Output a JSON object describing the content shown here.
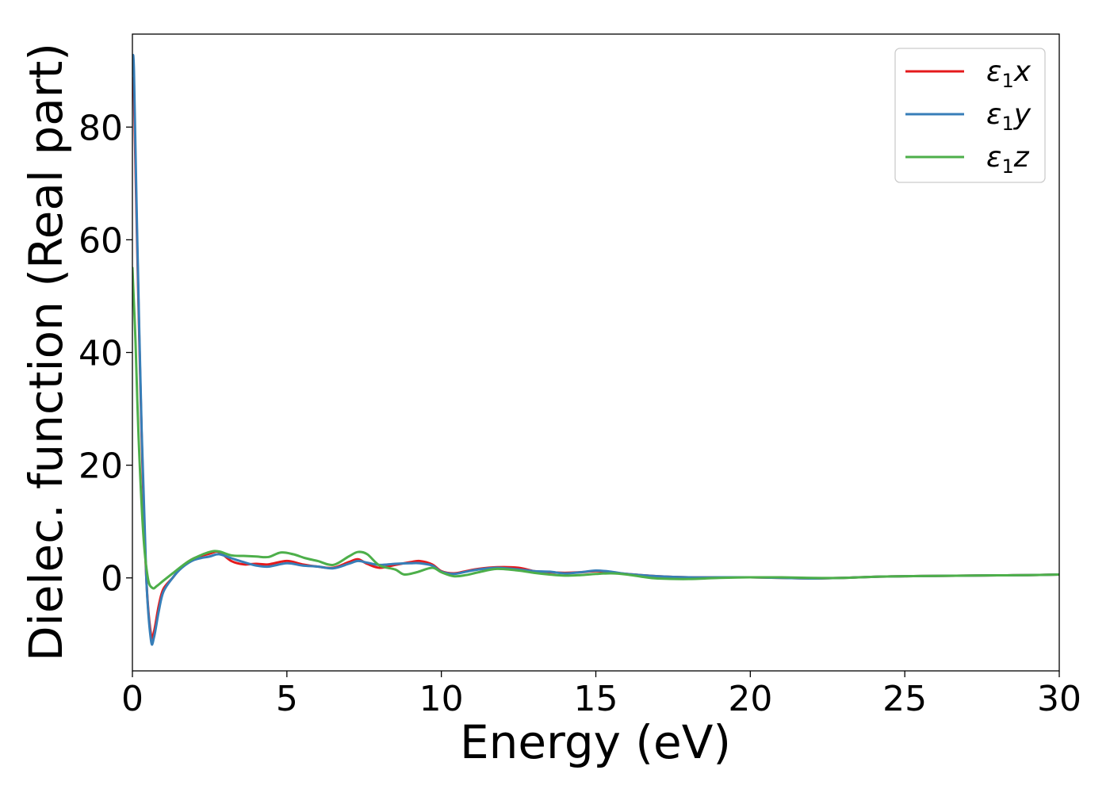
{
  "chart_data": {
    "type": "line",
    "title": "",
    "xlabel": "Energy (eV)",
    "ylabel": "Dielec. function (Real part)",
    "xlim": [
      0,
      30
    ],
    "ylim": [
      -16.5,
      96.5
    ],
    "xticks": [
      0,
      5,
      10,
      15,
      20,
      25,
      30
    ],
    "xtick_labels": [
      "0",
      "5",
      "10",
      "15",
      "20",
      "25",
      "30"
    ],
    "yticks": [
      0,
      20,
      40,
      60,
      80
    ],
    "ytick_labels": [
      "0",
      "20",
      "40",
      "60",
      "80"
    ],
    "grid": false,
    "legend_position": "top-right",
    "series": [
      {
        "name": "ε1x",
        "name_base": "ε",
        "name_sub": "1",
        "name_tail": "x",
        "color": "#e41a1c",
        "x": [
          0,
          0.05,
          0.15,
          0.3,
          0.45,
          0.6,
          0.7,
          0.85,
          1.0,
          1.3,
          1.6,
          2.0,
          2.5,
          2.8,
          3.2,
          3.6,
          4.0,
          4.4,
          5.0,
          5.5,
          6.0,
          6.5,
          7.0,
          7.3,
          7.6,
          8.0,
          8.5,
          9.0,
          9.3,
          9.7,
          10.0,
          10.4,
          10.8,
          11.2,
          11.8,
          12.5,
          13.0,
          13.5,
          14.0,
          14.5,
          15.0,
          15.5,
          16.0,
          17.0,
          18.0,
          19.0,
          20.0,
          21.0,
          22.0,
          23.0,
          24.0,
          25.0,
          26.0,
          27.0,
          28.0,
          29.0,
          30.0
        ],
        "y": [
          88.0,
          86.0,
          60.0,
          25.0,
          0.0,
          -10.0,
          -9.5,
          -5.0,
          -2.0,
          0.0,
          2.0,
          3.5,
          4.3,
          4.6,
          3.0,
          2.4,
          2.5,
          2.4,
          3.0,
          2.4,
          2.0,
          1.8,
          2.8,
          3.3,
          2.5,
          1.8,
          2.3,
          2.8,
          3.0,
          2.4,
          1.2,
          0.8,
          1.2,
          1.6,
          1.9,
          1.8,
          1.2,
          1.0,
          0.9,
          1.0,
          1.2,
          1.0,
          0.7,
          0.3,
          0.1,
          0.1,
          0.1,
          0.0,
          -0.1,
          0.0,
          0.2,
          0.3,
          0.35,
          0.4,
          0.45,
          0.5,
          0.6
        ]
      },
      {
        "name": "ε1y",
        "name_base": "ε",
        "name_sub": "1",
        "name_tail": "y",
        "color": "#377eb8",
        "x": [
          0,
          0.05,
          0.15,
          0.3,
          0.45,
          0.6,
          0.7,
          0.85,
          1.0,
          1.3,
          1.6,
          2.0,
          2.5,
          2.8,
          3.2,
          3.6,
          4.0,
          4.4,
          5.0,
          5.5,
          6.0,
          6.5,
          7.0,
          7.3,
          7.6,
          8.0,
          8.5,
          9.0,
          9.3,
          9.7,
          10.0,
          10.4,
          10.8,
          11.2,
          11.8,
          12.5,
          13.0,
          13.5,
          14.0,
          14.5,
          15.0,
          15.5,
          16.0,
          17.0,
          18.0,
          19.0,
          20.0,
          21.0,
          22.0,
          23.0,
          24.0,
          25.0,
          26.0,
          27.0,
          28.0,
          29.0,
          30.0
        ],
        "y": [
          92.0,
          90.0,
          62.0,
          26.0,
          0.0,
          -11.0,
          -10.5,
          -6.0,
          -2.5,
          0.0,
          1.8,
          3.2,
          3.8,
          4.2,
          3.5,
          2.8,
          2.2,
          2.0,
          2.6,
          2.2,
          2.0,
          1.7,
          2.5,
          3.0,
          2.7,
          2.3,
          2.5,
          2.6,
          2.6,
          2.2,
          1.1,
          0.7,
          1.1,
          1.5,
          1.8,
          1.5,
          1.2,
          1.1,
          0.8,
          1.0,
          1.3,
          1.1,
          0.7,
          0.3,
          0.1,
          0.1,
          0.1,
          0.0,
          -0.1,
          0.0,
          0.2,
          0.3,
          0.35,
          0.4,
          0.45,
          0.5,
          0.6
        ]
      },
      {
        "name": "ε1z",
        "name_base": "ε",
        "name_sub": "1",
        "name_tail": "z",
        "color": "#4daf4a",
        "x": [
          0,
          0.1,
          0.2,
          0.35,
          0.5,
          0.65,
          0.8,
          1.0,
          1.3,
          1.7,
          2.0,
          2.5,
          2.8,
          3.2,
          3.6,
          4.0,
          4.4,
          4.8,
          5.2,
          5.6,
          6.0,
          6.5,
          7.0,
          7.3,
          7.6,
          8.0,
          8.5,
          8.8,
          9.2,
          9.7,
          10.0,
          10.4,
          10.8,
          11.2,
          11.8,
          12.5,
          13.0,
          13.5,
          14.0,
          14.5,
          15.0,
          15.5,
          16.0,
          16.5,
          17.0,
          18.0,
          19.0,
          20.0,
          21.0,
          22.0,
          23.0,
          24.0,
          25.0,
          26.0,
          27.0,
          28.0,
          29.0,
          30.0
        ],
        "y": [
          55.0,
          42.0,
          25.0,
          8.0,
          0.0,
          -1.8,
          -1.4,
          -0.5,
          0.8,
          2.5,
          3.5,
          4.6,
          4.7,
          4.0,
          3.9,
          3.8,
          3.7,
          4.5,
          4.2,
          3.5,
          3.0,
          2.3,
          3.8,
          4.6,
          4.2,
          2.2,
          1.5,
          0.6,
          1.0,
          1.8,
          1.0,
          0.3,
          0.5,
          1.0,
          1.6,
          1.3,
          0.9,
          0.6,
          0.4,
          0.5,
          0.7,
          0.8,
          0.6,
          0.2,
          -0.1,
          -0.2,
          0.0,
          0.1,
          0.1,
          0.0,
          0.0,
          0.2,
          0.3,
          0.35,
          0.4,
          0.45,
          0.5,
          0.6
        ]
      }
    ]
  }
}
